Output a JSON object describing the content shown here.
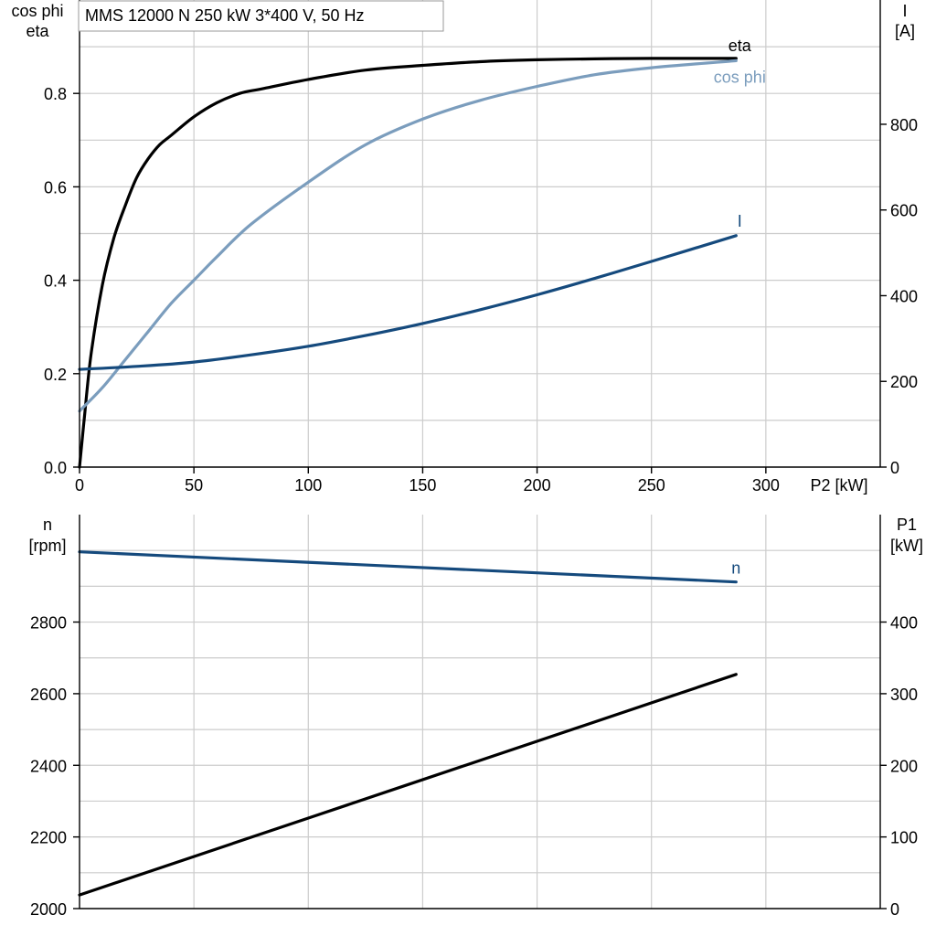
{
  "chart_title": "MMS 12000 N   250 kW   3*400 V, 50 Hz",
  "x_axis_label": "P2 [kW]",
  "colors": {
    "eta": "#000000",
    "cos_phi": "#7b9dbd",
    "I": "#154a7d",
    "n": "#154a7d",
    "P1": "#000000"
  },
  "chart_data": [
    {
      "type": "line",
      "x_range": [
        0,
        350
      ],
      "x_ticks": [
        "0",
        "50",
        "100",
        "150",
        "200",
        "250",
        "300"
      ],
      "left_axis": {
        "label_line1": "cos phi",
        "label_line2": "eta",
        "range": [
          0,
          1.0
        ],
        "ticks": [
          "0.0",
          "0.2",
          "0.4",
          "0.6",
          "0.8"
        ]
      },
      "right_axis": {
        "label_line1": "I",
        "label_line2": "[A]",
        "range": [
          0,
          1090
        ],
        "ticks": [
          "0",
          "200",
          "400",
          "600",
          "800"
        ]
      },
      "grid": true,
      "series": [
        {
          "name": "eta",
          "axis": "left",
          "color_key": "eta",
          "label": "eta",
          "x": [
            0,
            2,
            5,
            10,
            15,
            20,
            25,
            30,
            35,
            40,
            50,
            60,
            70,
            80,
            100,
            125,
            150,
            175,
            200,
            225,
            250,
            287
          ],
          "y": [
            0,
            0.1,
            0.24,
            0.39,
            0.49,
            0.56,
            0.62,
            0.66,
            0.69,
            0.71,
            0.75,
            0.78,
            0.8,
            0.81,
            0.83,
            0.85,
            0.86,
            0.868,
            0.872,
            0.874,
            0.875,
            0.875
          ]
        },
        {
          "name": "cos phi",
          "axis": "left",
          "color_key": "cos_phi",
          "label": "cos phi",
          "x": [
            0,
            10,
            20,
            30,
            40,
            50,
            60,
            75,
            100,
            125,
            150,
            175,
            200,
            225,
            250,
            287
          ],
          "y": [
            0.12,
            0.17,
            0.23,
            0.29,
            0.35,
            0.4,
            0.45,
            0.52,
            0.61,
            0.69,
            0.745,
            0.785,
            0.815,
            0.84,
            0.855,
            0.87
          ]
        },
        {
          "name": "I",
          "axis": "right",
          "color_key": "I",
          "label": "I",
          "x": [
            0,
            25,
            50,
            75,
            100,
            125,
            150,
            175,
            200,
            225,
            250,
            287
          ],
          "y": [
            228,
            235,
            245,
            262,
            282,
            307,
            335,
            367,
            402,
            440,
            480,
            540
          ]
        }
      ]
    },
    {
      "type": "line",
      "x_range": [
        0,
        350
      ],
      "left_axis": {
        "label_line1": "n",
        "label_line2": "[rpm]",
        "range": [
          2000,
          3100
        ],
        "ticks": [
          "2000",
          "2200",
          "2400",
          "2600",
          "2800"
        ]
      },
      "right_axis": {
        "label_line1": "P1",
        "label_line2": "[kW]",
        "range": [
          0,
          550
        ],
        "ticks": [
          "0",
          "100",
          "200",
          "300",
          "400"
        ]
      },
      "grid": true,
      "series": [
        {
          "name": "n",
          "axis": "left",
          "color_key": "n",
          "label": "n",
          "x": [
            0,
            287
          ],
          "y": [
            2996,
            2912
          ]
        },
        {
          "name": "P1",
          "axis": "right",
          "color_key": "P1",
          "label": "",
          "x": [
            0,
            287
          ],
          "y": [
            19,
            327
          ]
        }
      ]
    }
  ]
}
